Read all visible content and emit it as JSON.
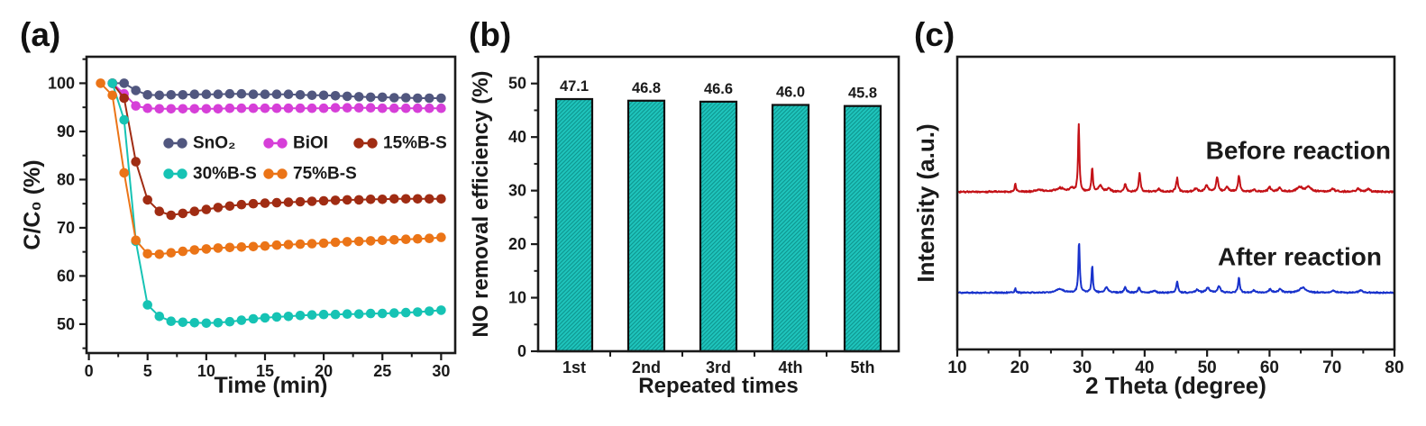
{
  "chart_data": [
    {
      "panel_label": "(a)",
      "type": "line",
      "title": "",
      "xlabel": "Time (min)",
      "ylabel": "C/C₀ (%)",
      "xlim": [
        -0.2,
        31.2
      ],
      "ylim": [
        44,
        105.5
      ],
      "xticks": [
        0,
        5,
        10,
        15,
        20,
        25,
        30
      ],
      "yticks": [
        50,
        60,
        70,
        80,
        90,
        100
      ],
      "x_minor_step": 2.5,
      "y_minor_step": 5,
      "grid": false,
      "legend_position": "inside upper-middle, two rows",
      "legend_rows": [
        [
          "SnO₂",
          "BiOI",
          "15%B-S"
        ],
        [
          "30%B-S",
          "75%B-S"
        ]
      ],
      "series": [
        {
          "name": "SnO₂",
          "color": "#51577f",
          "x": [
            2,
            3,
            4,
            5,
            6,
            7,
            8,
            9,
            10,
            11,
            12,
            13,
            14,
            15,
            16,
            17,
            18,
            19,
            20,
            21,
            22,
            23,
            24,
            25,
            26,
            27,
            28,
            29,
            30
          ],
          "y": [
            100,
            100,
            98.5,
            97.6,
            97.5,
            97.6,
            97.6,
            97.7,
            97.7,
            97.7,
            97.8,
            97.8,
            97.7,
            97.7,
            97.7,
            97.7,
            97.6,
            97.5,
            97.5,
            97.4,
            97.3,
            97.2,
            97.1,
            97.1,
            97.0,
            97.0,
            96.9,
            96.9,
            96.9
          ]
        },
        {
          "name": "BiOI",
          "color": "#d63fd8",
          "x": [
            2,
            3,
            4,
            5,
            6,
            7,
            8,
            9,
            10,
            11,
            12,
            13,
            14,
            15,
            16,
            17,
            18,
            19,
            20,
            21,
            22,
            23,
            24,
            25,
            26,
            27,
            28,
            29,
            30
          ],
          "y": [
            100,
            97.8,
            95.3,
            94.8,
            94.7,
            94.7,
            94.7,
            94.7,
            94.7,
            94.7,
            94.8,
            94.8,
            94.8,
            94.8,
            94.8,
            94.8,
            94.8,
            94.8,
            94.8,
            94.9,
            94.9,
            94.9,
            94.9,
            94.8,
            94.8,
            94.8,
            94.8,
            94.8,
            94.8
          ]
        },
        {
          "name": "15%B-S",
          "color": "#a02c13",
          "x": [
            2,
            3,
            4,
            5,
            6,
            7,
            8,
            9,
            10,
            11,
            12,
            13,
            14,
            15,
            16,
            17,
            18,
            19,
            20,
            21,
            22,
            23,
            24,
            25,
            26,
            27,
            28,
            29,
            30
          ],
          "y": [
            100,
            96.9,
            83.7,
            75.8,
            73.4,
            72.6,
            73.0,
            73.4,
            73.8,
            74.2,
            74.5,
            74.8,
            75.0,
            75.1,
            75.2,
            75.3,
            75.4,
            75.5,
            75.6,
            75.7,
            75.8,
            75.8,
            75.9,
            75.9,
            76.0,
            76.0,
            76.0,
            76.0,
            76.0
          ]
        },
        {
          "name": "30%B-S",
          "color": "#16c3b4",
          "x": [
            2,
            3,
            4,
            5,
            6,
            7,
            8,
            9,
            10,
            11,
            12,
            13,
            14,
            15,
            16,
            17,
            18,
            19,
            20,
            21,
            22,
            23,
            24,
            25,
            26,
            27,
            28,
            29,
            30
          ],
          "y": [
            100,
            92.4,
            67.2,
            54.0,
            51.6,
            50.6,
            50.4,
            50.3,
            50.2,
            50.3,
            50.5,
            50.8,
            51.1,
            51.3,
            51.5,
            51.6,
            51.8,
            51.9,
            52.0,
            52.0,
            52.1,
            52.1,
            52.2,
            52.2,
            52.3,
            52.4,
            52.5,
            52.7,
            52.9
          ]
        },
        {
          "name": "75%B-S",
          "color": "#eb7417",
          "x": [
            1,
            2,
            3,
            4,
            5,
            6,
            7,
            8,
            9,
            10,
            11,
            12,
            13,
            14,
            15,
            16,
            17,
            18,
            19,
            20,
            21,
            22,
            23,
            24,
            25,
            26,
            27,
            28,
            29,
            30
          ],
          "y": [
            100,
            97.5,
            81.4,
            67.4,
            64.6,
            64.5,
            64.8,
            65.1,
            65.4,
            65.6,
            65.8,
            65.9,
            66.0,
            66.1,
            66.2,
            66.4,
            66.5,
            66.6,
            66.7,
            66.8,
            67.0,
            67.1,
            67.2,
            67.3,
            67.4,
            67.5,
            67.6,
            67.7,
            67.8,
            68.0
          ]
        }
      ]
    },
    {
      "panel_label": "(b)",
      "type": "bar",
      "title": "",
      "xlabel": "Repeated times",
      "ylabel": "NO removal efficiency (%)",
      "categories": [
        "1st",
        "2nd",
        "3rd",
        "4th",
        "5th"
      ],
      "values": [
        47.1,
        46.8,
        46.6,
        46.0,
        45.8
      ],
      "bar_labels": [
        "47.1",
        "46.8",
        "46.6",
        "46.0",
        "45.8"
      ],
      "ylim": [
        0,
        55
      ],
      "yticks": [
        0,
        10,
        20,
        30,
        40,
        50
      ],
      "y_minor_step": 5,
      "grid": false,
      "bar_fill": "#1ec4bc",
      "bar_hatch": "diagonal",
      "bar_hatch_color": "#0e968f",
      "bar_edge_color": "#101010"
    },
    {
      "panel_label": "(c)",
      "type": "line",
      "subtype": "xrd",
      "title": "",
      "xlabel": "2 Theta (degree)",
      "ylabel": "Intensity (a.u.)",
      "xlim": [
        10,
        80
      ],
      "xticks": [
        10,
        20,
        30,
        40,
        50,
        60,
        70,
        80
      ],
      "x_minor_step": 5,
      "grid": false,
      "series": [
        {
          "name": "Before reaction",
          "color": "#c41217",
          "peaks": [
            [
              19.3,
              0.13,
              0.12
            ],
            [
              23.2,
              0.03,
              0.5
            ],
            [
              26.5,
              0.055,
              0.8
            ],
            [
              28.3,
              0.05,
              0.3
            ],
            [
              29.45,
              1.0,
              0.13
            ],
            [
              31.6,
              0.36,
              0.13
            ],
            [
              32.9,
              0.09,
              0.35
            ],
            [
              34.2,
              0.05,
              0.3
            ],
            [
              36.9,
              0.12,
              0.18
            ],
            [
              39.2,
              0.28,
              0.16
            ],
            [
              42.3,
              0.04,
              0.3
            ],
            [
              45.2,
              0.2,
              0.18
            ],
            [
              48.2,
              0.05,
              0.3
            ],
            [
              49.9,
              0.1,
              0.25
            ],
            [
              51.6,
              0.22,
              0.2
            ],
            [
              53.2,
              0.07,
              0.3
            ],
            [
              55.1,
              0.24,
              0.18
            ],
            [
              57.5,
              0.03,
              0.3
            ],
            [
              60.0,
              0.07,
              0.25
            ],
            [
              61.6,
              0.06,
              0.3
            ],
            [
              64.8,
              0.07,
              0.5
            ],
            [
              66.2,
              0.07,
              0.5
            ],
            [
              70.1,
              0.04,
              0.4
            ],
            [
              74.2,
              0.045,
              0.35
            ],
            [
              75.8,
              0.04,
              0.35
            ]
          ]
        },
        {
          "name": "After reaction",
          "color": "#1832cc",
          "peaks": [
            [
              19.3,
              0.08,
              0.12
            ],
            [
              26.4,
              0.07,
              0.7
            ],
            [
              29.5,
              1.0,
              0.13
            ],
            [
              31.6,
              0.52,
              0.13
            ],
            [
              33.9,
              0.1,
              0.3
            ],
            [
              36.9,
              0.11,
              0.2
            ],
            [
              39.1,
              0.1,
              0.2
            ],
            [
              41.5,
              0.04,
              0.3
            ],
            [
              45.2,
              0.22,
              0.16
            ],
            [
              48.4,
              0.06,
              0.3
            ],
            [
              50.1,
              0.1,
              0.3
            ],
            [
              51.9,
              0.13,
              0.25
            ],
            [
              55.1,
              0.3,
              0.15
            ],
            [
              57.5,
              0.04,
              0.3
            ],
            [
              60.1,
              0.06,
              0.3
            ],
            [
              61.7,
              0.07,
              0.3
            ],
            [
              65.3,
              0.1,
              0.6
            ],
            [
              70.2,
              0.04,
              0.4
            ],
            [
              74.6,
              0.05,
              0.35
            ]
          ]
        }
      ],
      "annotations": [
        {
          "text": "Before reaction",
          "color": "#c41217"
        },
        {
          "text": "After reaction",
          "color": "#1832cc"
        }
      ]
    }
  ]
}
